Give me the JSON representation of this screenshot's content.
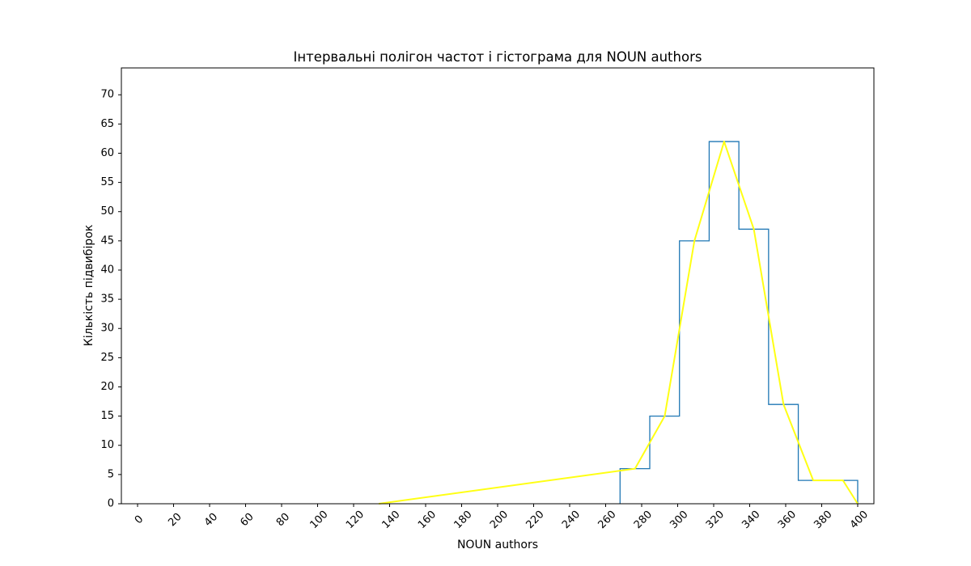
{
  "chart_data": {
    "type": "bar",
    "title": "Інтервальні полігон частот і гістограма для NOUN authors",
    "xlabel": "NOUN authors",
    "ylabel": "Кількість підвибірок",
    "xlim": [
      -9,
      409
    ],
    "ylim": [
      0,
      74.6
    ],
    "xticks": [
      0,
      20,
      40,
      60,
      80,
      100,
      120,
      140,
      160,
      180,
      200,
      220,
      240,
      260,
      280,
      300,
      320,
      340,
      360,
      380,
      400
    ],
    "xtick_rotation": 45,
    "yticks": [
      0,
      5,
      10,
      15,
      20,
      25,
      30,
      35,
      40,
      45,
      50,
      55,
      60,
      65,
      70
    ],
    "grid": false,
    "legend": "none",
    "series": [
      {
        "kind": "histogram-step",
        "color": "#1f77b4",
        "bin_edges": [
          268,
          284.5,
          301,
          317.5,
          334,
          350.5,
          367,
          383.5,
          400
        ],
        "counts": [
          6,
          15,
          45,
          62,
          47,
          17,
          4,
          4
        ]
      },
      {
        "kind": "frequency-polygon",
        "color": "#ffff14",
        "x": [
          134,
          276.3,
          292.8,
          309.3,
          325.8,
          342.3,
          358.8,
          375.3,
          391.8,
          400
        ],
        "y": [
          0,
          6,
          15,
          45,
          62,
          47,
          17,
          4,
          4,
          0
        ]
      }
    ]
  }
}
